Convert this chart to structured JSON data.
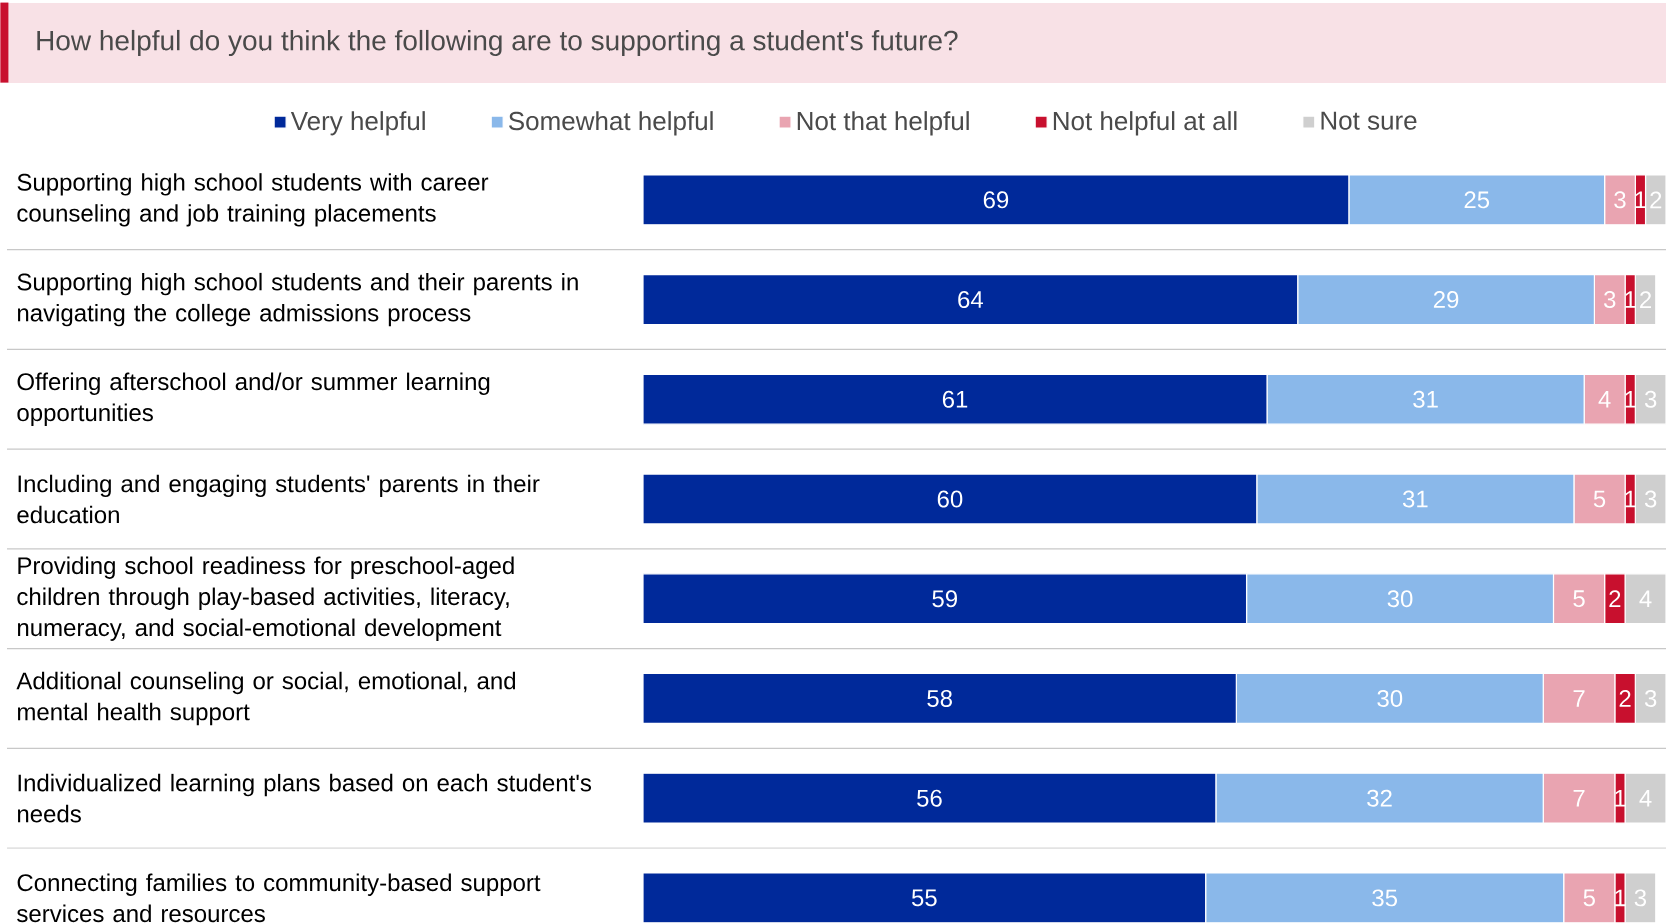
{
  "chart_data": {
    "type": "bar",
    "orientation": "horizontal",
    "stacked": true,
    "title": "How helpful do you think the following are to supporting a student's future?",
    "categories": [
      "Supporting high school students with career counseling and job training placements",
      "Supporting high school students and their parents in navigating the college admissions process",
      "Offering afterschool and/or summer learning opportunities",
      "Including and engaging students' parents in their education",
      "Providing school readiness for preschool-aged children through play-based activities, literacy, numeracy, and social-emotional development",
      "Additional counseling or social, emotional, and mental health support",
      "Individualized learning plans based on each student's needs",
      "Connecting families to community-based support services and resources"
    ],
    "series": [
      {
        "name": "Very helpful",
        "color": "#00299a",
        "values": [
          69,
          64,
          61,
          60,
          59,
          58,
          56,
          55
        ]
      },
      {
        "name": "Somewhat helpful",
        "color": "#8ab8ea",
        "values": [
          25,
          29,
          31,
          31,
          30,
          30,
          32,
          35
        ]
      },
      {
        "name": "Not that helpful",
        "color": "#e9a4b1",
        "values": [
          3,
          3,
          4,
          5,
          5,
          7,
          7,
          5
        ]
      },
      {
        "name": "Not helpful at all",
        "color": "#c8102e",
        "values": [
          1,
          1,
          1,
          1,
          2,
          2,
          1,
          1
        ]
      },
      {
        "name": "Not sure",
        "color": "#cfcfcf",
        "values": [
          2,
          2,
          3,
          3,
          4,
          3,
          4,
          3
        ]
      }
    ],
    "data_labels": true,
    "legend": "top"
  }
}
